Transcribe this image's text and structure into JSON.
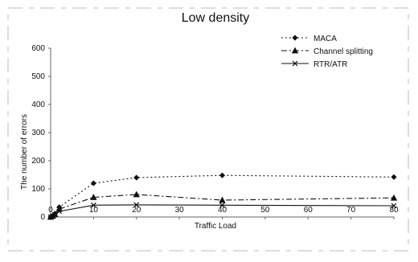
{
  "chart_data": {
    "type": "line",
    "title": "Low density",
    "xlabel": "Traffic Load",
    "ylabel": "The number of errors",
    "xlim": [
      0,
      80
    ],
    "ylim": [
      0,
      600
    ],
    "x_ticks": [
      0,
      10,
      20,
      30,
      40,
      50,
      60,
      70,
      80
    ],
    "y_ticks": [
      0,
      100,
      200,
      300,
      400,
      500,
      600
    ],
    "grid": false,
    "legend_position": "top-right",
    "series": [
      {
        "name": "MACA",
        "line_style": "dotted",
        "marker": "diamond",
        "x": [
          0,
          0.5,
          1,
          2,
          10,
          20,
          40,
          80
        ],
        "y": [
          0,
          5,
          12,
          35,
          120,
          140,
          148,
          142
        ]
      },
      {
        "name": "Channel splitting",
        "line_style": "dash-dot",
        "marker": "triangle",
        "x": [
          0,
          0.5,
          1,
          2,
          10,
          20,
          40,
          80
        ],
        "y": [
          0,
          4,
          10,
          28,
          70,
          80,
          60,
          68
        ]
      },
      {
        "name": "RTR/ATR",
        "line_style": "solid",
        "marker": "x",
        "x": [
          0,
          0.5,
          1,
          2,
          10,
          20,
          40,
          80
        ],
        "y": [
          0,
          3,
          8,
          20,
          42,
          43,
          42,
          40
        ]
      }
    ]
  }
}
